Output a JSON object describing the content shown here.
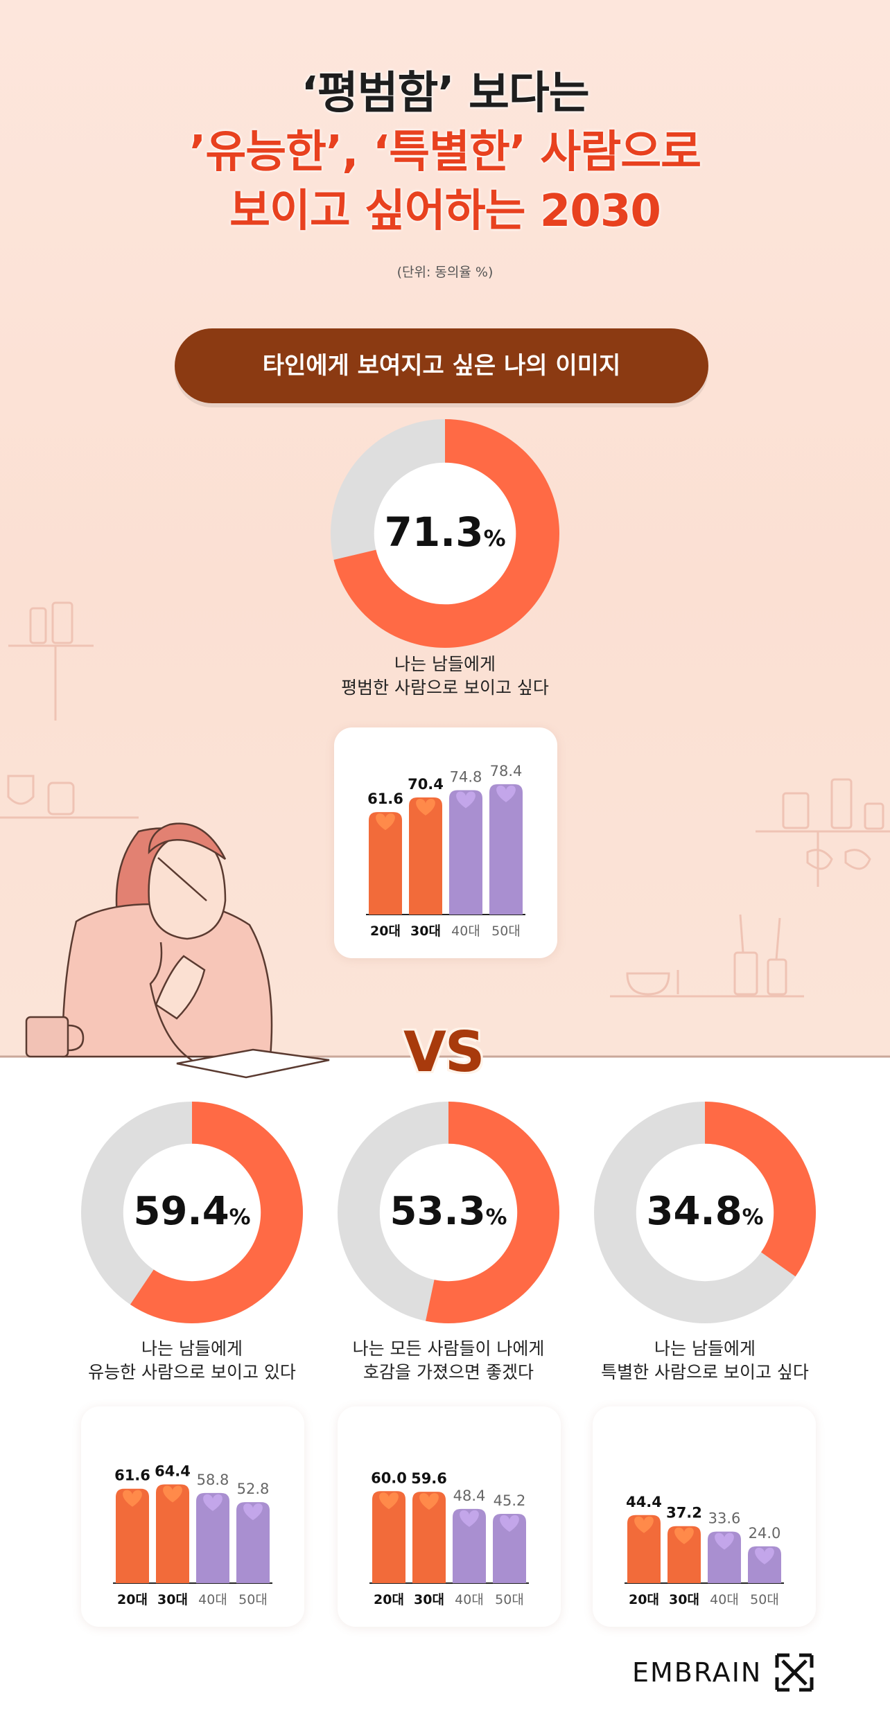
{
  "header": {
    "title_line1": "‘평범함’ 보다는",
    "title_line2": "’유능한’, ‘특별한’ 사람으로",
    "title_line3": "보이고 싶어하는 2030",
    "unit": "(단위: 동의율 %)"
  },
  "section_title": "타인에게 보여지고 싶은 나의 이미지",
  "vs_label": "VS",
  "percent_symbol": "%",
  "colors": {
    "donut_fill": "#ff6a45",
    "donut_track": "#dedede",
    "bar_young": "#f26b3a",
    "bar_old": "#a98fd0",
    "heart_young": "#ff8a4a",
    "heart_old": "#c3a6ea"
  },
  "chart_data": [
    {
      "type": "pie",
      "value": 71.3,
      "value_label": "71.3",
      "caption_lines": [
        "나는 남들에게",
        "평범한 사람으로 보이고 싶다"
      ],
      "bar_chart": {
        "type": "bar",
        "categories": [
          "20대",
          "30대",
          "40대",
          "50대"
        ],
        "values": [
          61.6,
          70.4,
          74.8,
          78.4
        ],
        "value_labels": [
          "61.6",
          "70.4",
          "74.8",
          "78.4"
        ]
      }
    },
    {
      "type": "pie",
      "value": 59.4,
      "value_label": "59.4",
      "caption_lines": [
        "나는 남들에게",
        "유능한 사람으로 보이고 있다"
      ],
      "bar_chart": {
        "type": "bar",
        "categories": [
          "20대",
          "30대",
          "40대",
          "50대"
        ],
        "values": [
          61.6,
          64.4,
          58.8,
          52.8
        ],
        "value_labels": [
          "61.6",
          "64.4",
          "58.8",
          "52.8"
        ]
      }
    },
    {
      "type": "pie",
      "value": 53.3,
      "value_label": "53.3",
      "caption_lines": [
        "나는 모든 사람들이 나에게",
        "호감을 가졌으면 좋겠다"
      ],
      "bar_chart": {
        "type": "bar",
        "categories": [
          "20대",
          "30대",
          "40대",
          "50대"
        ],
        "values": [
          60.0,
          59.6,
          48.4,
          45.2
        ],
        "value_labels": [
          "60.0",
          "59.6",
          "48.4",
          "45.2"
        ]
      }
    },
    {
      "type": "pie",
      "value": 34.8,
      "value_label": "34.8",
      "caption_lines": [
        "나는 남들에게",
        "특별한 사람으로 보이고 싶다"
      ],
      "bar_chart": {
        "type": "bar",
        "categories": [
          "20대",
          "30대",
          "40대",
          "50대"
        ],
        "values": [
          44.4,
          37.2,
          33.6,
          24.0
        ],
        "value_labels": [
          "44.4",
          "37.2",
          "33.6",
          "24.0"
        ]
      }
    }
  ],
  "footer": {
    "logo_text": "EMBRAIN"
  }
}
